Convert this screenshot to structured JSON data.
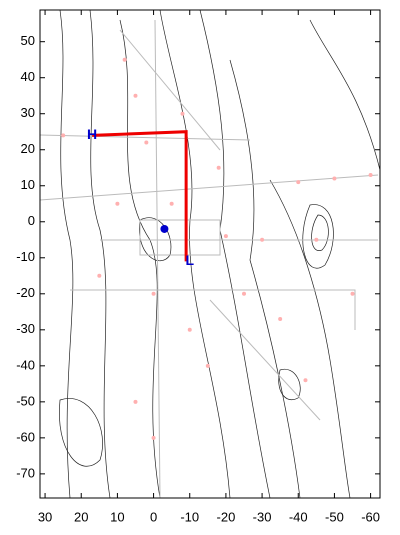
{
  "chart_data": {
    "type": "line",
    "xlim": [
      31.4,
      -62.6
    ],
    "ylim": [
      -76.7,
      58.8
    ],
    "xticks": [
      30,
      20,
      10,
      0,
      -10,
      -20,
      -30,
      -40,
      -50,
      -60
    ],
    "yticks": [
      50,
      40,
      30,
      20,
      10,
      0,
      -10,
      -20,
      -30,
      -40,
      -50,
      -60,
      -70
    ],
    "series": [
      {
        "color": "#ee0000",
        "x": [
          17,
          -9,
          -9
        ],
        "values": [
          24,
          25,
          -11
        ]
      }
    ],
    "marker": {
      "color": "#0000cc",
      "x": -3,
      "y": -2
    },
    "points": {
      "color": "#ffb0b0",
      "x": [
        8,
        5,
        -8,
        25,
        2,
        -18,
        -40,
        -50,
        -60,
        10,
        -5,
        -20,
        -30,
        -45,
        15,
        0,
        -25,
        -55,
        -10,
        -35,
        5,
        -15,
        -42,
        0
      ],
      "y": [
        45,
        35,
        30,
        24,
        22,
        15,
        11,
        12,
        13,
        5,
        5,
        -4,
        -5,
        -5,
        -15,
        -20,
        -20,
        -20,
        -30,
        -27,
        -50,
        -40,
        -44,
        -60
      ]
    },
    "annotations": [
      {
        "text": "H",
        "x": 17,
        "y": 24
      },
      {
        "text": "L",
        "x": -10,
        "y": -11
      }
    ]
  }
}
